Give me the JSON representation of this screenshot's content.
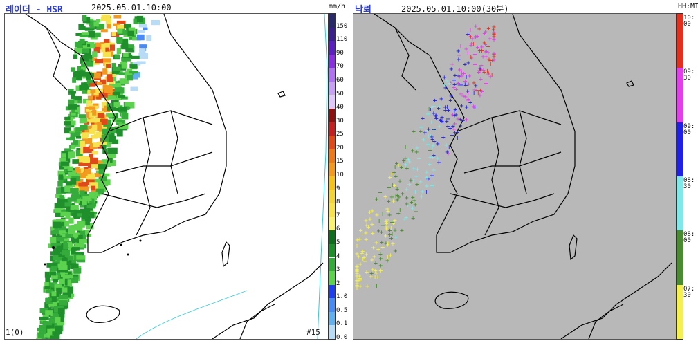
{
  "left_panel": {
    "title": "레이더 - HSR",
    "timestamp": "2025.05.01.10:00",
    "unit": "mm/h",
    "frame_label": "1(0)",
    "scan_label": "#15",
    "legend": [
      {
        "label": "150",
        "color": "#2a2a6a"
      },
      {
        "label": "110",
        "color": "#3a1e8a"
      },
      {
        "label": "90",
        "color": "#5b1ec0"
      },
      {
        "label": "70",
        "color": "#8a2fe0"
      },
      {
        "label": "60",
        "color": "#b072f0"
      },
      {
        "label": "50",
        "color": "#c8a0f4"
      },
      {
        "label": "40",
        "color": "#e0c8f8"
      },
      {
        "label": "30",
        "color": "#8c1010"
      },
      {
        "label": "25",
        "color": "#c42020"
      },
      {
        "label": "20",
        "color": "#e04a1a"
      },
      {
        "label": "15",
        "color": "#ec7a1a"
      },
      {
        "label": "10",
        "color": "#f29a20"
      },
      {
        "label": "9",
        "color": "#f4c21c"
      },
      {
        "label": "8",
        "color": "#f2d438"
      },
      {
        "label": "7",
        "color": "#f6e24c"
      },
      {
        "label": "6",
        "color": "#f8f070"
      },
      {
        "label": "5",
        "color": "#0f6e1e"
      },
      {
        "label": "4",
        "color": "#1f8f2c"
      },
      {
        "label": "3",
        "color": "#34ab3a"
      },
      {
        "label": "2",
        "color": "#5cd24e"
      },
      {
        "label": "1.0",
        "color": "#1f3ef0"
      },
      {
        "label": "0.5",
        "color": "#4a8af4"
      },
      {
        "label": "0.1",
        "color": "#62b0ee"
      },
      {
        "label": "0.0",
        "color": "#b9dcf6"
      }
    ]
  },
  "right_panel": {
    "title": "낙뢰",
    "timestamp": "2025.05.01.10:00(30분)",
    "unit": "HH:MI",
    "legend": [
      {
        "label": "10:\n00",
        "color": "#e03020"
      },
      {
        "label": "09:\n30",
        "color": "#e040e8"
      },
      {
        "label": "09:\n00",
        "color": "#2020e0"
      },
      {
        "label": "08:\n30",
        "color": "#80e8e8"
      },
      {
        "label": "08:\n00",
        "color": "#4a8a30"
      },
      {
        "label": "07:\n30",
        "color": "#f4f050"
      }
    ]
  }
}
